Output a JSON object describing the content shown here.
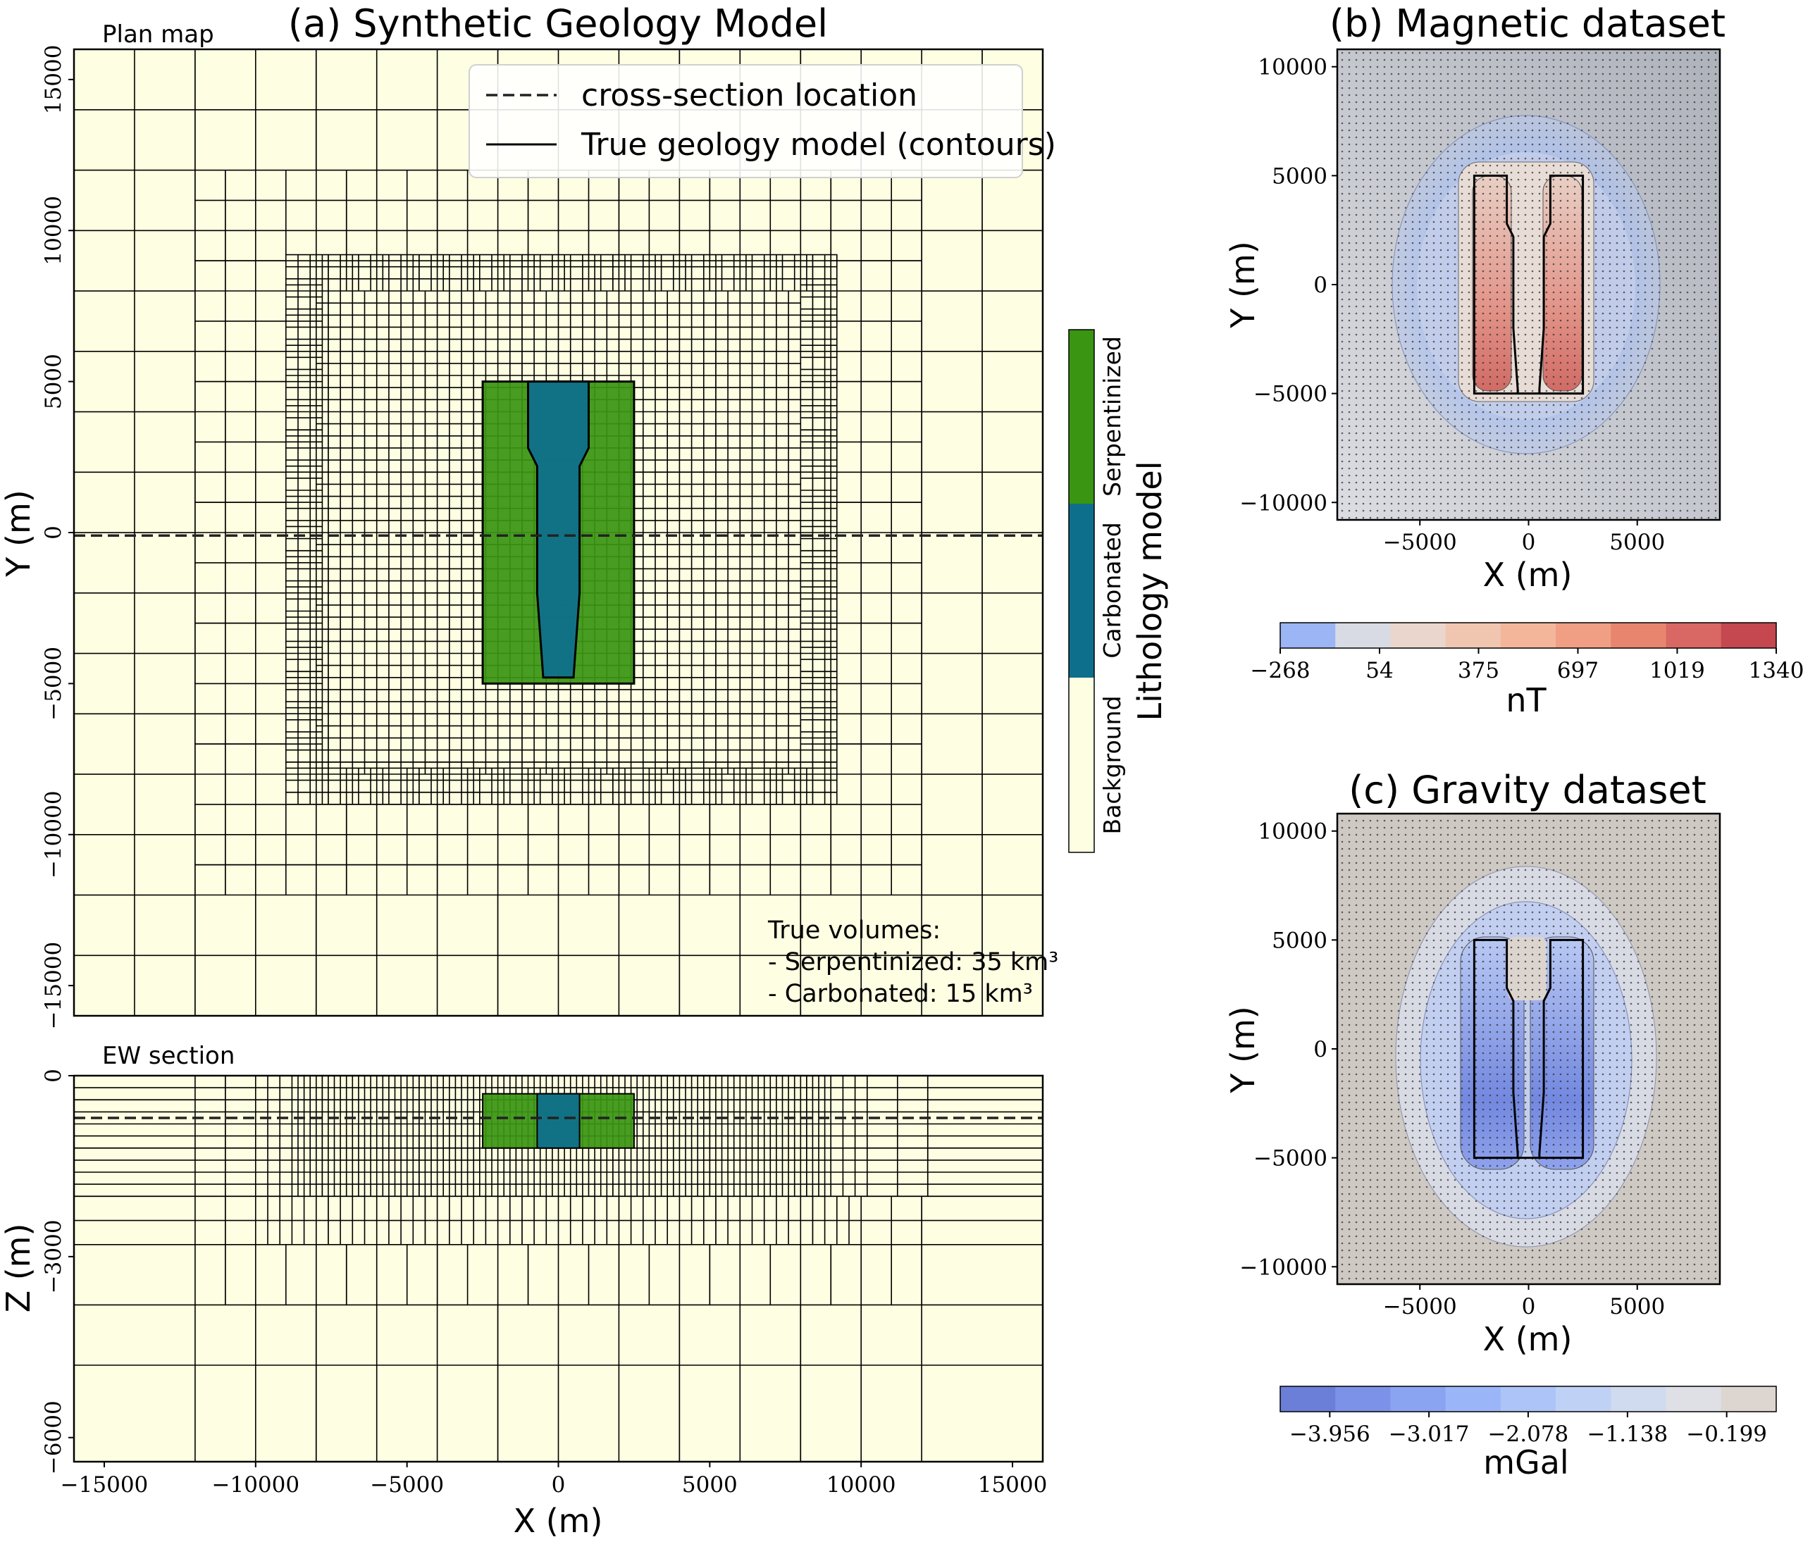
{
  "colors": {
    "background": "#fefee2",
    "carbonated": "#0e6f8d",
    "serpentinized": "#3a9512",
    "grid_line": "#000000"
  },
  "chart_data": [
    {
      "id": "a",
      "type": "heatmap",
      "title": "(a) Synthetic Geology Model",
      "panel_label": "Plan map",
      "xlabel": "",
      "ylabel": "Y (m)",
      "xlim": [
        -16000,
        16000
      ],
      "ylim": [
        -16000,
        16000
      ],
      "xticks": [
        -15000,
        -10000,
        -5000,
        0,
        5000,
        10000,
        15000
      ],
      "yticks": [
        -15000,
        -10000,
        -5000,
        0,
        5000,
        10000,
        15000
      ],
      "cross_section_y": -100,
      "units": [
        {
          "name": "Serpentinized",
          "x": [
            -2500,
            2500
          ],
          "y": [
            -5000,
            5000
          ]
        },
        {
          "name": "Carbonated",
          "polygon": [
            [
              -1000,
              5000
            ],
            [
              1000,
              5000
            ],
            [
              1000,
              2800
            ],
            [
              700,
              2200
            ],
            [
              700,
              -2000
            ],
            [
              500,
              -4800
            ],
            [
              -500,
              -4800
            ],
            [
              -700,
              -2000
            ],
            [
              -700,
              2200
            ],
            [
              -1000,
              2800
            ]
          ]
        }
      ],
      "legend": {
        "placement": "upper-right",
        "entries": [
          "cross-section location",
          "True geology model (contours)"
        ]
      },
      "annotation": [
        "True volumes:",
        "- Serpentinized: 35 km³",
        "- Carbonated: 15 km³"
      ]
    },
    {
      "id": "a-section",
      "type": "heatmap",
      "panel_label": "EW section",
      "xlabel": "X (m)",
      "ylabel": "Z (m)",
      "xlim": [
        -16000,
        16000
      ],
      "ylim": [
        -6400,
        0
      ],
      "xticks": [
        -15000,
        -10000,
        -5000,
        0,
        5000,
        10000,
        15000
      ],
      "yticks": [
        0,
        -3000,
        -6000
      ],
      "cross_section_z": -700,
      "units": [
        {
          "name": "Serpentinized",
          "x": [
            -2500,
            2500
          ],
          "z": [
            -300,
            -1200
          ]
        },
        {
          "name": "Carbonated",
          "x": [
            -700,
            700
          ],
          "z": [
            -300,
            -1200
          ]
        }
      ]
    },
    {
      "id": "lithology-colorbar",
      "type": "colorbar",
      "label": "Lithology model",
      "categories": [
        "Background",
        "Carbonated",
        "Serpentinized"
      ]
    },
    {
      "id": "b",
      "type": "heatmap",
      "title": "(b) Magnetic dataset",
      "xlabel": "X (m)",
      "ylabel": "Y (m)",
      "xlim": [
        -8800,
        8800
      ],
      "ylim": [
        -10800,
        10800
      ],
      "xticks": [
        -5000,
        0,
        5000
      ],
      "yticks": [
        -10000,
        -5000,
        0,
        5000,
        10000
      ],
      "colorbar": {
        "label": "nT",
        "ticks": [
          -268,
          54,
          375,
          697,
          1019,
          1340
        ],
        "colors": [
          "#9bb5f5",
          "#d8dbe3",
          "#ead6cc",
          "#f0c6b1",
          "#f3b69a",
          "#f19f84",
          "#e8856f",
          "#d96763",
          "#c5474f"
        ]
      }
    },
    {
      "id": "c",
      "type": "heatmap",
      "title": "(c) Gravity dataset",
      "xlabel": "X (m)",
      "ylabel": "Y (m)",
      "xlim": [
        -8800,
        8800
      ],
      "ylim": [
        -10800,
        10800
      ],
      "xticks": [
        -5000,
        0,
        5000
      ],
      "yticks": [
        -10000,
        -5000,
        0,
        5000,
        10000
      ],
      "colorbar": {
        "label": "mGal",
        "ticks": [
          -3.956,
          -3.017,
          -2.078,
          -1.138,
          -0.199
        ],
        "colors": [
          "#6c7fd8",
          "#7b92e8",
          "#8aa4f2",
          "#9bb6f8",
          "#adc4f8",
          "#bfd1f4",
          "#d0dbef",
          "#dfdfe6",
          "#ddd6d0"
        ]
      }
    }
  ]
}
